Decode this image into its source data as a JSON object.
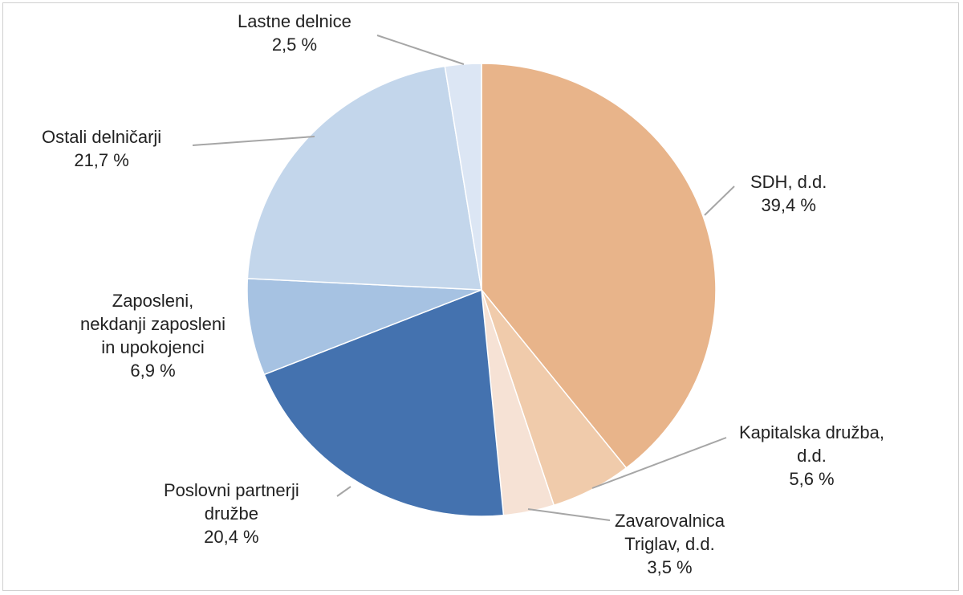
{
  "chart_data": {
    "type": "pie",
    "title": "",
    "start_angle": "top",
    "direction": "clockwise",
    "slices": [
      {
        "name": "SDH, d.d.",
        "lines": [
          "SDH, d.d."
        ],
        "value": 39.4,
        "label": "39,4 %",
        "color": "#E8B48A"
      },
      {
        "name": "Kapitalska družba, d.d.",
        "lines": [
          "Kapitalska družba,",
          "d.d."
        ],
        "value": 5.6,
        "label": "5,6 %",
        "color": "#F0CBAB"
      },
      {
        "name": "Zavarovalnica Triglav, d.d.",
        "lines": [
          "Zavarovalnica",
          "Triglav, d.d."
        ],
        "value": 3.5,
        "label": "3,5 %",
        "color": "#F6E2D5"
      },
      {
        "name": "Poslovni partnerji družbe",
        "lines": [
          "Poslovni partnerji",
          "družbe"
        ],
        "value": 20.4,
        "label": "20,4 %",
        "color": "#4472AF"
      },
      {
        "name": "Zaposleni, nekdanji zaposleni in upokojenci",
        "lines": [
          "Zaposleni,",
          "nekdanji zaposleni",
          "in upokojenci"
        ],
        "value": 6.9,
        "label": "6,9 %",
        "color": "#A6C2E2"
      },
      {
        "name": "Ostali delničarji",
        "lines": [
          "Ostali delničarji"
        ],
        "value": 21.7,
        "label": "21,7 %",
        "color": "#C3D6EB"
      },
      {
        "name": "Lastne delnice",
        "lines": [
          "Lastne delnice"
        ],
        "value": 2.5,
        "label": "2,5 %",
        "color": "#DCE6F4"
      }
    ]
  }
}
